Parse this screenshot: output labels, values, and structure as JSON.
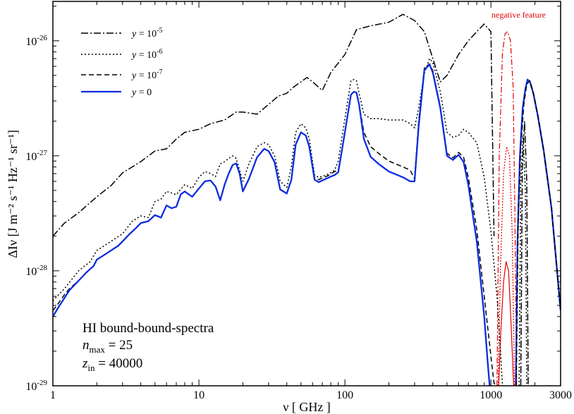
{
  "chart_data": {
    "type": "line",
    "x_scale": "log",
    "y_scale": "log",
    "xlim": [
      1,
      3000
    ],
    "ylim": [
      1e-29,
      2.2e-26
    ],
    "xlabel": "ν [ GHz ]",
    "ylabel": "ΔIν [J m⁻² s⁻¹ Hz⁻¹ sr⁻¹]",
    "x_ticks": [
      {
        "value": 1,
        "label": "1"
      },
      {
        "value": 10,
        "label": "10"
      },
      {
        "value": 100,
        "label": "100"
      },
      {
        "value": 1000,
        "label": "1000"
      },
      {
        "value": 3000,
        "label": "3000"
      }
    ],
    "y_ticks": [
      {
        "value": 1e-29,
        "mant": "10",
        "exp": "-29"
      },
      {
        "value": 1e-28,
        "mant": "10",
        "exp": "-28"
      },
      {
        "value": 1e-27,
        "mant": "10",
        "exp": "-27"
      },
      {
        "value": 1e-26,
        "mant": "10",
        "exp": "-26"
      }
    ],
    "grid": false,
    "legend_position": "top-left",
    "series": [
      {
        "name": "y = 10^-5",
        "legend_base": "y = 10",
        "legend_exp": "-5",
        "color": "#000000",
        "dash": "10,3,2,3",
        "width": 1.5,
        "x": [
          1,
          1.2,
          1.5,
          2,
          2.5,
          3,
          4,
          5,
          6,
          7,
          8,
          10,
          12,
          15,
          18,
          20,
          25,
          30,
          35,
          40,
          45,
          50,
          55,
          60,
          70,
          80,
          100,
          120,
          150,
          200,
          250,
          300,
          350,
          400,
          450,
          500,
          600,
          700,
          800,
          900,
          1000,
          1050
        ],
        "y": [
          2e-28,
          2.6e-28,
          3.2e-28,
          4.4e-28,
          5.5e-28,
          7.1e-28,
          8.9e-28,
          1.1e-27,
          1.15e-27,
          1.4e-27,
          1.6e-27,
          1.7e-27,
          1.9e-27,
          2.05e-27,
          2.4e-27,
          2.4e-27,
          2.3e-27,
          2.8e-27,
          3.3e-27,
          3.5e-27,
          4e-27,
          4.4e-27,
          4.8e-27,
          4.4e-27,
          3.7e-27,
          5.3e-27,
          7.6e-27,
          1.25e-26,
          1.35e-26,
          1.45e-26,
          1.7e-26,
          1.5e-26,
          1.2e-26,
          7e-27,
          4.4e-27,
          5e-27,
          7.6e-27,
          1e-26,
          1.2e-26,
          1.4e-26,
          1.2e-26,
          2e-28
        ]
      },
      {
        "name": "y = 10^-6",
        "legend_base": "y = 10",
        "legend_exp": "-6",
        "color": "#000000",
        "dash": "2,3",
        "width": 1.5,
        "x": [
          1,
          1.2,
          1.5,
          1.8,
          2,
          2.5,
          3,
          3.5,
          4,
          4.5,
          5,
          5.5,
          6,
          7,
          8,
          9,
          10,
          11,
          12,
          13,
          14,
          15,
          16,
          17,
          18,
          20,
          22,
          25,
          28,
          30,
          33,
          36,
          40,
          43,
          46,
          50,
          54,
          57,
          62,
          66,
          72,
          78,
          85,
          90,
          100,
          110,
          115,
          120,
          125,
          135,
          150,
          170,
          200,
          250,
          280,
          300,
          320,
          350,
          380,
          400,
          450,
          500,
          550,
          600,
          650,
          700,
          800,
          900,
          1000,
          1100,
          1150,
          1200,
          1300
        ],
        "y": [
          5.5e-29,
          7e-29,
          1e-28,
          1.2e-28,
          1.5e-28,
          1.8e-28,
          2.1e-28,
          2.7e-28,
          3e-28,
          2.9e-28,
          4e-28,
          4.2e-28,
          4.9e-28,
          4.6e-28,
          5.6e-28,
          5.2e-28,
          6.5e-28,
          7.3e-28,
          7e-28,
          6.6e-28,
          8.5e-28,
          8.9e-28,
          9.5e-28,
          1e-27,
          9.5e-28,
          6e-28,
          8.5e-28,
          1.2e-27,
          1.3e-27,
          1.25e-27,
          1e-27,
          6e-28,
          5.3e-28,
          8e-28,
          1.6e-27,
          1.9e-27,
          1.75e-27,
          1.4e-27,
          6.8e-28,
          6.5e-28,
          6.7e-28,
          7e-28,
          7.5e-28,
          9e-28,
          2.1e-27,
          4.5e-27,
          4.6e-27,
          4.5e-27,
          3.5e-27,
          2.3e-27,
          2.1e-27,
          2.1e-27,
          2.05e-27,
          2.05e-27,
          1.9e-27,
          1.75e-27,
          2.6e-27,
          5.2e-27,
          7e-27,
          6.5e-27,
          3.6e-27,
          1.6e-27,
          1.45e-27,
          1.5e-27,
          1.7e-27,
          1.6e-27,
          1.3e-27,
          6.5e-28,
          2.2e-28,
          6e-29,
          2.5e-29,
          1e-29,
          1e-29
        ]
      },
      {
        "name": "y = 10^-7",
        "legend_base": "y = 10",
        "legend_exp": "-7",
        "color": "#000000",
        "dash": "7,4",
        "width": 1.5,
        "x": [
          1,
          1.1,
          1.2,
          1.3,
          1.5,
          1.7,
          1.9,
          2,
          2.2,
          2.5,
          2.8,
          3,
          3.3,
          3.7,
          4,
          4.5,
          5,
          5.5,
          6,
          6.5,
          7,
          7.5,
          8,
          9,
          10,
          11,
          12,
          13,
          14,
          15,
          16,
          17,
          18,
          19,
          20,
          22,
          25,
          28,
          30,
          33,
          36,
          40,
          43,
          46,
          50,
          54,
          57,
          62,
          66,
          72,
          78,
          85,
          90,
          100,
          110,
          115,
          120,
          125,
          135,
          150,
          170,
          200,
          250,
          280,
          300,
          320,
          350,
          380,
          400,
          450,
          500,
          550,
          600,
          650,
          700,
          800,
          900,
          1000,
          1050,
          1100
        ],
        "y": [
          4.5e-29,
          5.3e-29,
          6.2e-29,
          7e-29,
          8.2e-29,
          9.7e-29,
          1.1e-28,
          1.25e-28,
          1.35e-28,
          1.5e-28,
          1.65e-28,
          1.8e-28,
          2.05e-28,
          2.35e-28,
          2.6e-28,
          2.7e-28,
          3.05e-28,
          2.9e-28,
          3.7e-28,
          3.5e-28,
          3.6e-28,
          4.6e-28,
          4.9e-28,
          4.4e-28,
          5.2e-28,
          6e-28,
          6.1e-28,
          5.4e-28,
          4.1e-28,
          5.6e-28,
          7e-28,
          8.3e-28,
          8.6e-28,
          7e-28,
          4.9e-28,
          6.3e-28,
          9.7e-28,
          1.15e-27,
          1.1e-27,
          8.8e-28,
          5.1e-28,
          4.7e-28,
          6.2e-28,
          1.25e-27,
          1.6e-27,
          1.5e-27,
          1.2e-27,
          6.5e-28,
          6.2e-28,
          6.5e-28,
          6.8e-28,
          7.3e-28,
          7.5e-28,
          1.6e-27,
          3.4e-27,
          3.6e-27,
          3.55e-27,
          2.8e-27,
          1.6e-27,
          1.2e-27,
          1.05e-27,
          9e-28,
          8e-28,
          7.5e-28,
          6.3e-28,
          2e-27,
          5.8e-27,
          6.3e-27,
          5.5e-27,
          2.7e-27,
          1.05e-27,
          9.6e-28,
          1.07e-27,
          9.7e-28,
          6.5e-28,
          2.3e-28,
          6e-29,
          1.8e-29,
          1.05e-29,
          1e-29
        ]
      },
      {
        "name": "y = 0",
        "legend_base": "y = 0",
        "legend_exp": "",
        "color": "#0b2cdf",
        "dash": "",
        "width": 2.3,
        "x": [
          1,
          1.1,
          1.2,
          1.3,
          1.5,
          1.7,
          1.9,
          2,
          2.2,
          2.5,
          2.8,
          3,
          3.3,
          3.7,
          4,
          4.5,
          5,
          5.5,
          6,
          6.5,
          7,
          7.5,
          8,
          9,
          10,
          11,
          12,
          13,
          14,
          15,
          16,
          17,
          18,
          19,
          20,
          22,
          25,
          28,
          30,
          33,
          36,
          40,
          43,
          46,
          50,
          54,
          57,
          62,
          66,
          72,
          78,
          85,
          90,
          100,
          110,
          115,
          120,
          125,
          135,
          150,
          170,
          200,
          250,
          280,
          300,
          320,
          350,
          380,
          400,
          450,
          500,
          550,
          600,
          650,
          700,
          800,
          900,
          950,
          980
        ],
        "y": [
          4e-29,
          4.9e-29,
          5.8e-29,
          6.8e-29,
          8.2e-29,
          9.7e-29,
          1.1e-28,
          1.25e-28,
          1.35e-28,
          1.5e-28,
          1.65e-28,
          1.8e-28,
          2.05e-28,
          2.35e-28,
          2.6e-28,
          2.7e-28,
          3.05e-28,
          2.9e-28,
          3.7e-28,
          3.5e-28,
          3.6e-28,
          4.6e-28,
          4.9e-28,
          4.4e-28,
          5.2e-28,
          6e-28,
          6.1e-28,
          5.4e-28,
          4.1e-28,
          5.6e-28,
          7e-28,
          8.3e-28,
          8.6e-28,
          7e-28,
          4.9e-28,
          6.3e-28,
          9.7e-28,
          1.15e-27,
          1.1e-27,
          8.8e-28,
          5.1e-28,
          4.7e-28,
          6.2e-28,
          1.25e-27,
          1.6e-27,
          1.5e-27,
          1.2e-27,
          6.2e-28,
          5.9e-28,
          6.2e-28,
          6.5e-28,
          6.8e-28,
          7.2e-28,
          1.6e-27,
          3.4e-27,
          3.6e-27,
          3.55e-27,
          2.8e-27,
          1.4e-27,
          9.8e-28,
          8.5e-28,
          7.3e-28,
          6.5e-28,
          6e-28,
          6e-28,
          1.8e-27,
          5.6e-27,
          6.2e-27,
          5.3e-27,
          2.6e-27,
          1e-27,
          9.2e-28,
          1.02e-27,
          8.8e-28,
          5.6e-28,
          1.8e-28,
          4e-29,
          1.6e-29,
          1e-29
        ]
      },
      {
        "name": "y = 0 (positive bump)",
        "legend_base": "",
        "legend_exp": "",
        "color": "#0b2cdf",
        "dash": "",
        "width": 2.3,
        "x": [
          1480,
          1520,
          1580,
          1650,
          1720,
          1780,
          1850,
          1950,
          2100,
          2300,
          2600,
          3000
        ],
        "y": [
          1e-29,
          1.8e-28,
          1e-27,
          2.6e-27,
          3.8e-27,
          4.6e-27,
          4.4e-27,
          3.5e-27,
          2.2e-27,
          1.1e-27,
          3.5e-28,
          4.5e-29
        ]
      },
      {
        "name": "y = 10^-5 (positive bump)",
        "legend_base": "",
        "legend_exp": "",
        "color": "#000000",
        "dash": "10,3,2,3",
        "width": 1.5,
        "x": [
          1600,
          1640,
          1700,
          1760,
          1800
        ],
        "y": [
          1e-29,
          8e-28,
          2e-27,
          6e-28,
          1e-29
        ]
      },
      {
        "name": "y = 10^-6 (positive bump)",
        "legend_base": "",
        "legend_exp": "",
        "color": "#000000",
        "dash": "2,3",
        "width": 1.5,
        "x": [
          1560,
          1600,
          1660,
          1720,
          1760
        ],
        "y": [
          1e-29,
          6e-28,
          1.5e-27,
          5e-28,
          1e-29
        ]
      },
      {
        "name": "y = 10^-7 (positive bump)",
        "legend_base": "",
        "legend_exp": "",
        "color": "#000000",
        "dash": "7,4",
        "width": 1.5,
        "x": [
          1490,
          1540,
          1600,
          1680,
          1760,
          1850,
          1950,
          2100,
          2300,
          2600,
          3000
        ],
        "y": [
          1e-29,
          3e-28,
          1.2e-27,
          2.8e-27,
          4.2e-27,
          4.5e-27,
          3.5e-27,
          2.2e-27,
          1.1e-27,
          3.5e-28,
          4.5e-29
        ]
      }
    ],
    "negative_series": [
      {
        "name": "negative y = 10^-5",
        "color": "#e00000",
        "dash": "8,3,2,3",
        "x": [
          1100,
          1140,
          1200,
          1250,
          1300,
          1360,
          1420,
          1460,
          1500
        ],
        "y": [
          1e-29,
          1e-27,
          8e-27,
          1.15e-26,
          1.2e-26,
          1e-26,
          4e-27,
          3e-28,
          1e-29
        ]
      },
      {
        "name": "negative y = 10^-6",
        "color": "#e00000",
        "dash": "2,2",
        "x": [
          1120,
          1160,
          1220,
          1280,
          1340,
          1400,
          1450
        ],
        "y": [
          1e-29,
          1e-28,
          7e-28,
          1.2e-27,
          1e-27,
          2e-28,
          1e-29
        ]
      },
      {
        "name": "negative y = 0",
        "color": "#e00000",
        "dash": "",
        "x": [
          1130,
          1170,
          1220,
          1270,
          1320,
          1380,
          1430
        ],
        "y": [
          1e-29,
          3e-29,
          8e-29,
          1.2e-28,
          1e-28,
          3e-29,
          1e-29
        ]
      }
    ],
    "annotations": {
      "negative_label": "negative feature",
      "line1": "HI bound-bound-spectra",
      "nmax_var": "n",
      "nmax_sub": "max",
      "nmax_value": " = 25",
      "zin_var": "z",
      "zin_sub": "in",
      "zin_value": " = 40000"
    }
  }
}
